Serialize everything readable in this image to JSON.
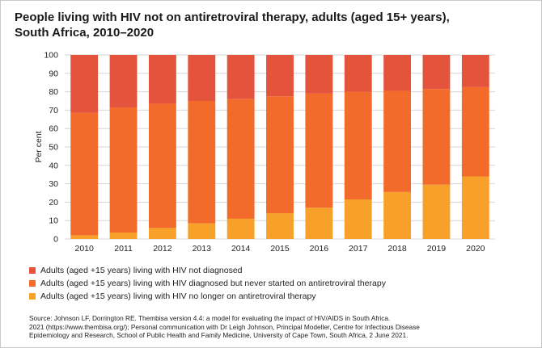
{
  "chart_data": {
    "type": "bar",
    "stacked": true,
    "title_lines": [
      "People living with HIV not on antiretroviral therapy, adults (aged 15+ years),",
      "South Africa, 2010–2020"
    ],
    "ylabel": "Per cent",
    "xlabel": "",
    "ylim": [
      0,
      100
    ],
    "yticks": [
      0,
      10,
      20,
      30,
      40,
      50,
      60,
      70,
      80,
      90,
      100
    ],
    "categories": [
      "2010",
      "2011",
      "2012",
      "2013",
      "2014",
      "2015",
      "2016",
      "2017",
      "2018",
      "2019",
      "2020"
    ],
    "series": [
      {
        "name": "Adults (aged +15 years) living with HIV no longer on antiretroviral therapy",
        "color": "#F7A12A",
        "values": [
          2,
          3.5,
          6,
          8.5,
          11,
          14,
          17,
          21.5,
          25.5,
          29.5,
          34
        ]
      },
      {
        "name": "Adults (aged +15 years) living with HIV diagnosed but never started on antiretroviral therapy",
        "color": "#F26B2A",
        "values": [
          66.5,
          68,
          67.5,
          66.5,
          65,
          63.5,
          62,
          58.5,
          55,
          52,
          48.5
        ]
      },
      {
        "name": "Adults (aged +15 years) living with HIV not diagnosed",
        "color": "#E4533C",
        "values": [
          31.5,
          28.5,
          26.5,
          25,
          24,
          22.5,
          21,
          20,
          19.5,
          18.5,
          17.5
        ]
      }
    ],
    "legend_order": [
      2,
      1,
      0
    ],
    "legend_position": "bottom-left",
    "grid": true
  },
  "source_lines": [
    "Source: Johnson LF, Dorrington RE. Thembisa version 4.4: a model for evaluating the impact of HIV/AIDS in South Africa.",
    "2021 (https://www.thembisa.org/); Personal communication with Dr Leigh Johnson, Principal Modeller, Centre for Infectious Disease",
    "Epidemiology and Research, School of Public Health and Family Medicine, University of Cape Town, South Africa, 2 June 2021."
  ],
  "colors": {
    "grid": "#d6d6d6",
    "axis_text": "#222222"
  }
}
